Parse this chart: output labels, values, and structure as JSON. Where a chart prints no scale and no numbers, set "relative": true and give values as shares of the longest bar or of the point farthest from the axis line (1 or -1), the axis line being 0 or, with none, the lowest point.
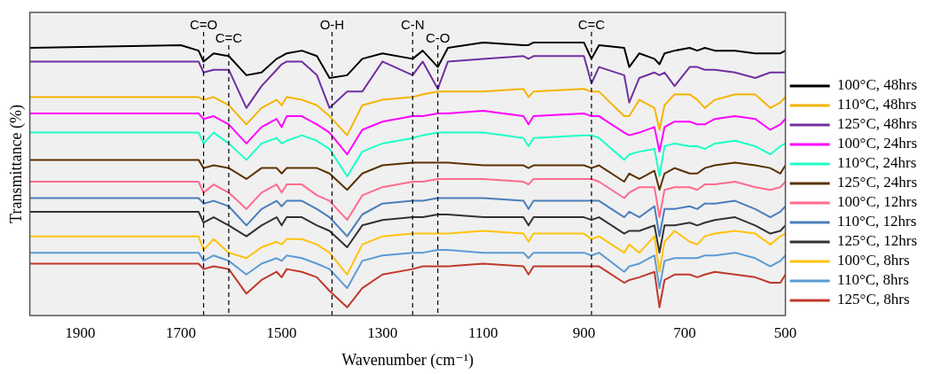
{
  "chart_data": {
    "type": "line",
    "xlabel": "Wavenumber (cm⁻¹)",
    "ylabel": "Transmittance (%)",
    "relative": true,
    "xlim": [
      2000,
      500
    ],
    "xticks": [
      1900,
      1700,
      1500,
      1300,
      1100,
      900,
      700,
      500
    ],
    "tick_labels": "x",
    "grid": false,
    "legend": "right",
    "marker": "none",
    "line_style": "solid",
    "x": [
      2000,
      1700,
      1665,
      1655,
      1635,
      1605,
      1570,
      1540,
      1510,
      1500,
      1490,
      1460,
      1430,
      1405,
      1370,
      1340,
      1300,
      1240,
      1220,
      1190,
      1170,
      1100,
      1020,
      1010,
      1000,
      900,
      885,
      870,
      820,
      810,
      790,
      760,
      750,
      740,
      720,
      690,
      675,
      660,
      640,
      600,
      560,
      530,
      510,
      500
    ],
    "ref_lines": [
      {
        "axis": "x",
        "value": 1655,
        "label": "C=O",
        "line_style": "dashed"
      },
      {
        "axis": "x",
        "value": 1605,
        "label": "C=C",
        "line_style": "dashed"
      },
      {
        "axis": "x",
        "value": 1400,
        "label": "O-H",
        "line_style": "dashed"
      },
      {
        "axis": "x",
        "value": 1240,
        "label": "C-N",
        "line_style": "dashed"
      },
      {
        "axis": "x",
        "value": 1190,
        "label": "C-O",
        "line_style": "dashed"
      },
      {
        "axis": "x",
        "value": 885,
        "label": "C=C",
        "line_style": "dashed"
      }
    ],
    "series": [
      {
        "name": "100°C, 48hrs",
        "color": "#000000",
        "values": [
          0.98,
          0.99,
          0.97,
          0.93,
          0.96,
          0.95,
          0.88,
          0.89,
          0.94,
          0.95,
          0.96,
          0.97,
          0.95,
          0.87,
          0.88,
          0.94,
          0.96,
          0.94,
          0.97,
          0.91,
          0.98,
          1.0,
          0.99,
          0.99,
          1.0,
          1.0,
          0.94,
          0.99,
          0.98,
          0.91,
          0.96,
          0.94,
          0.92,
          0.96,
          0.97,
          0.98,
          0.97,
          0.98,
          0.97,
          0.97,
          0.96,
          0.96,
          0.96,
          0.97
        ]
      },
      {
        "name": "110°C, 48hrs",
        "color": "#f5b400",
        "values": [
          0.8,
          0.8,
          0.8,
          0.79,
          0.8,
          0.77,
          0.7,
          0.76,
          0.79,
          0.77,
          0.8,
          0.79,
          0.77,
          0.73,
          0.66,
          0.77,
          0.79,
          0.8,
          0.81,
          0.82,
          0.82,
          0.82,
          0.83,
          0.8,
          0.82,
          0.83,
          0.82,
          0.82,
          0.73,
          0.73,
          0.79,
          0.76,
          0.68,
          0.77,
          0.81,
          0.81,
          0.79,
          0.76,
          0.79,
          0.81,
          0.81,
          0.76,
          0.78,
          0.8
        ]
      },
      {
        "name": "125°C, 48hrs",
        "color": "#7030a0",
        "values": [
          0.93,
          0.93,
          0.93,
          0.89,
          0.9,
          0.9,
          0.76,
          0.84,
          0.9,
          0.92,
          0.93,
          0.93,
          0.88,
          0.76,
          0.82,
          0.82,
          0.93,
          0.88,
          0.93,
          0.83,
          0.93,
          0.94,
          0.95,
          0.94,
          0.95,
          0.95,
          0.85,
          0.91,
          0.88,
          0.78,
          0.87,
          0.89,
          0.88,
          0.89,
          0.84,
          0.91,
          0.91,
          0.9,
          0.9,
          0.89,
          0.87,
          0.89,
          0.89,
          0.89
        ]
      },
      {
        "name": "100°C, 24hrs",
        "color": "#ff00ff",
        "values": [
          0.74,
          0.74,
          0.74,
          0.72,
          0.73,
          0.7,
          0.63,
          0.69,
          0.72,
          0.69,
          0.73,
          0.73,
          0.7,
          0.67,
          0.59,
          0.68,
          0.71,
          0.73,
          0.73,
          0.74,
          0.74,
          0.75,
          0.73,
          0.7,
          0.73,
          0.74,
          0.73,
          0.73,
          0.67,
          0.66,
          0.67,
          0.69,
          0.6,
          0.69,
          0.71,
          0.71,
          0.7,
          0.7,
          0.72,
          0.73,
          0.72,
          0.68,
          0.7,
          0.72
        ]
      },
      {
        "name": "110°C, 24hrs",
        "color": "#1effc8",
        "values": [
          0.67,
          0.67,
          0.67,
          0.63,
          0.67,
          0.63,
          0.57,
          0.63,
          0.65,
          0.63,
          0.64,
          0.66,
          0.64,
          0.61,
          0.51,
          0.6,
          0.63,
          0.65,
          0.66,
          0.67,
          0.67,
          0.67,
          0.65,
          0.62,
          0.65,
          0.66,
          0.66,
          0.65,
          0.57,
          0.59,
          0.6,
          0.61,
          0.51,
          0.62,
          0.63,
          0.62,
          0.62,
          0.61,
          0.63,
          0.64,
          0.62,
          0.59,
          0.62,
          0.63
        ]
      },
      {
        "name": "125°C, 24hrs",
        "color": "#5c3300",
        "values": [
          0.57,
          0.57,
          0.57,
          0.54,
          0.55,
          0.54,
          0.5,
          0.54,
          0.54,
          0.52,
          0.54,
          0.54,
          0.54,
          0.52,
          0.46,
          0.52,
          0.55,
          0.56,
          0.56,
          0.56,
          0.56,
          0.55,
          0.55,
          0.54,
          0.55,
          0.55,
          0.54,
          0.55,
          0.49,
          0.52,
          0.5,
          0.53,
          0.46,
          0.52,
          0.54,
          0.52,
          0.52,
          0.54,
          0.55,
          0.56,
          0.55,
          0.54,
          0.52,
          0.55
        ]
      },
      {
        "name": "100°C, 12hrs",
        "color": "#ff6b8e",
        "values": [
          0.49,
          0.49,
          0.49,
          0.45,
          0.48,
          0.45,
          0.39,
          0.45,
          0.48,
          0.45,
          0.48,
          0.48,
          0.44,
          0.42,
          0.35,
          0.44,
          0.47,
          0.49,
          0.49,
          0.5,
          0.5,
          0.5,
          0.49,
          0.48,
          0.5,
          0.5,
          0.5,
          0.49,
          0.43,
          0.45,
          0.47,
          0.47,
          0.36,
          0.46,
          0.47,
          0.47,
          0.46,
          0.48,
          0.48,
          0.49,
          0.47,
          0.46,
          0.47,
          0.49
        ]
      },
      {
        "name": "110°C, 12hrs",
        "color": "#4a7ebb",
        "values": [
          0.43,
          0.43,
          0.43,
          0.41,
          0.42,
          0.4,
          0.33,
          0.39,
          0.42,
          0.4,
          0.42,
          0.42,
          0.39,
          0.36,
          0.29,
          0.37,
          0.41,
          0.42,
          0.42,
          0.43,
          0.43,
          0.43,
          0.42,
          0.39,
          0.42,
          0.42,
          0.42,
          0.42,
          0.36,
          0.38,
          0.36,
          0.4,
          0.29,
          0.39,
          0.39,
          0.4,
          0.39,
          0.41,
          0.41,
          0.42,
          0.39,
          0.36,
          0.38,
          0.4
        ]
      },
      {
        "name": "125°C, 12hrs",
        "color": "#333333",
        "values": [
          0.38,
          0.38,
          0.38,
          0.34,
          0.36,
          0.33,
          0.29,
          0.33,
          0.36,
          0.33,
          0.36,
          0.36,
          0.33,
          0.31,
          0.25,
          0.33,
          0.35,
          0.36,
          0.36,
          0.37,
          0.37,
          0.36,
          0.36,
          0.33,
          0.36,
          0.36,
          0.35,
          0.36,
          0.3,
          0.31,
          0.31,
          0.33,
          0.23,
          0.33,
          0.33,
          0.34,
          0.33,
          0.34,
          0.35,
          0.36,
          0.33,
          0.3,
          0.31,
          0.33
        ]
      },
      {
        "name": "100°C, 8hrs",
        "color": "#ffc20e",
        "values": [
          0.29,
          0.29,
          0.29,
          0.24,
          0.28,
          0.23,
          0.21,
          0.25,
          0.27,
          0.26,
          0.28,
          0.28,
          0.26,
          0.23,
          0.15,
          0.26,
          0.29,
          0.3,
          0.3,
          0.3,
          0.3,
          0.31,
          0.3,
          0.27,
          0.3,
          0.3,
          0.28,
          0.29,
          0.23,
          0.26,
          0.23,
          0.29,
          0.16,
          0.27,
          0.31,
          0.27,
          0.26,
          0.29,
          0.3,
          0.31,
          0.3,
          0.26,
          0.29,
          0.3
        ]
      },
      {
        "name": "110°C, 8hrs",
        "color": "#5b9bd5",
        "values": [
          0.23,
          0.23,
          0.23,
          0.2,
          0.22,
          0.2,
          0.15,
          0.19,
          0.21,
          0.2,
          0.22,
          0.21,
          0.19,
          0.17,
          0.1,
          0.2,
          0.22,
          0.23,
          0.23,
          0.24,
          0.24,
          0.23,
          0.23,
          0.21,
          0.23,
          0.23,
          0.22,
          0.23,
          0.16,
          0.18,
          0.19,
          0.22,
          0.1,
          0.2,
          0.21,
          0.21,
          0.21,
          0.22,
          0.22,
          0.23,
          0.21,
          0.18,
          0.2,
          0.22
        ]
      },
      {
        "name": "125°C, 8hrs",
        "color": "#c0392b",
        "values": [
          0.19,
          0.19,
          0.19,
          0.17,
          0.18,
          0.17,
          0.08,
          0.13,
          0.16,
          0.14,
          0.17,
          0.16,
          0.14,
          0.09,
          0.03,
          0.1,
          0.15,
          0.17,
          0.18,
          0.18,
          0.18,
          0.19,
          0.18,
          0.15,
          0.18,
          0.18,
          0.18,
          0.18,
          0.12,
          0.13,
          0.14,
          0.16,
          0.03,
          0.13,
          0.15,
          0.15,
          0.14,
          0.15,
          0.16,
          0.15,
          0.14,
          0.12,
          0.12,
          0.15
        ]
      }
    ]
  }
}
